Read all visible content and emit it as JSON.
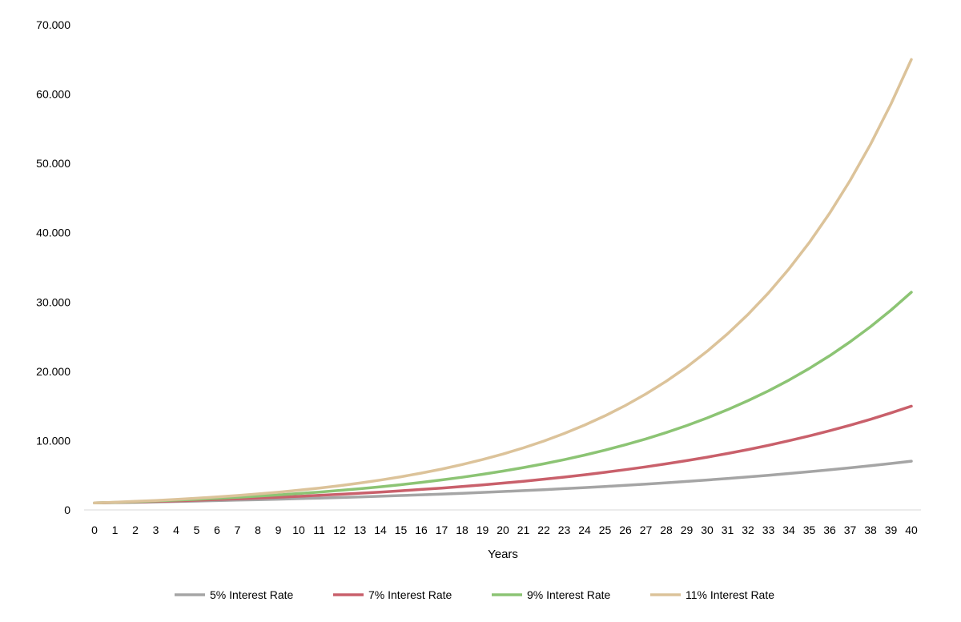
{
  "chart_data": {
    "type": "line",
    "xlabel": "Years",
    "ylabel": "",
    "title": "",
    "x": [
      0,
      1,
      2,
      3,
      4,
      5,
      6,
      7,
      8,
      9,
      10,
      11,
      12,
      13,
      14,
      15,
      16,
      17,
      18,
      19,
      20,
      21,
      22,
      23,
      24,
      25,
      26,
      27,
      28,
      29,
      30,
      31,
      32,
      33,
      34,
      35,
      36,
      37,
      38,
      39,
      40
    ],
    "ylim": [
      0,
      70000
    ],
    "yticks": [
      0,
      10000,
      20000,
      30000,
      40000,
      50000,
      60000,
      70000
    ],
    "ytick_labels": [
      "0",
      "10.000",
      "20.000",
      "30.000",
      "40.000",
      "50.000",
      "60.000",
      "70.000"
    ],
    "grid": false,
    "legend_position": "bottom",
    "series": [
      {
        "name": "5% Interest Rate",
        "color": "#a5a5a5",
        "values": [
          1000,
          1050,
          1103,
          1158,
          1216,
          1276,
          1340,
          1407,
          1477,
          1551,
          1629,
          1710,
          1796,
          1886,
          1980,
          2079,
          2183,
          2292,
          2407,
          2527,
          2653,
          2786,
          2925,
          3072,
          3225,
          3386,
          3556,
          3733,
          3920,
          4116,
          4322,
          4538,
          4765,
          5003,
          5253,
          5516,
          5792,
          6081,
          6385,
          6705,
          7040
        ]
      },
      {
        "name": "7% Interest Rate",
        "color": "#c9606b",
        "values": [
          1000,
          1070,
          1145,
          1225,
          1311,
          1403,
          1501,
          1606,
          1718,
          1838,
          1967,
          2105,
          2252,
          2410,
          2579,
          2759,
          2952,
          3159,
          3380,
          3617,
          3870,
          4141,
          4430,
          4741,
          5072,
          5427,
          5807,
          6214,
          6649,
          7114,
          7612,
          8145,
          8715,
          9325,
          9978,
          10677,
          11424,
          12224,
          13079,
          13995,
          14974
        ]
      },
      {
        "name": "9% Interest Rate",
        "color": "#8cc474",
        "values": [
          1000,
          1090,
          1188,
          1295,
          1412,
          1539,
          1677,
          1828,
          1993,
          2172,
          2367,
          2580,
          2813,
          3066,
          3342,
          3642,
          3970,
          4328,
          4717,
          5142,
          5604,
          6109,
          6659,
          7258,
          7911,
          8623,
          9399,
          10245,
          11167,
          12172,
          13268,
          14462,
          15763,
          17182,
          18728,
          20414,
          22251,
          24254,
          26437,
          28816,
          31409
        ]
      },
      {
        "name": "11% Interest Rate",
        "color": "#dcc39a",
        "values": [
          1000,
          1110,
          1232,
          1368,
          1518,
          1685,
          1870,
          2076,
          2305,
          2558,
          2839,
          3152,
          3498,
          3883,
          4310,
          4785,
          5311,
          5895,
          6544,
          7263,
          8062,
          8949,
          9934,
          11026,
          12239,
          13585,
          15080,
          16739,
          18580,
          20624,
          22892,
          25410,
          28206,
          31308,
          34752,
          38575,
          42818,
          47528,
          52756,
          58559,
          65001
        ]
      }
    ]
  }
}
